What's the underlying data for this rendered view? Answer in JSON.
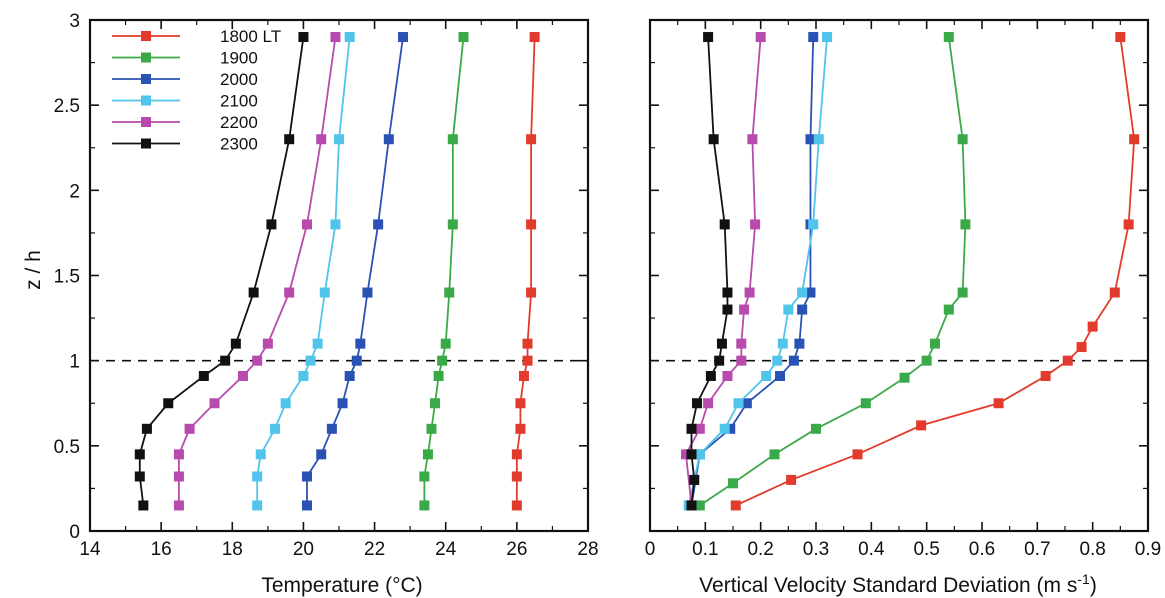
{
  "chart_data": [
    {
      "type": "line",
      "panel": "left",
      "xlabel": "Temperature (°C)",
      "ylabel": "z / h",
      "xlim": [
        14,
        28
      ],
      "ylim": [
        0,
        3
      ],
      "xticks": [
        "14",
        "16",
        "18",
        "20",
        "22",
        "24",
        "26",
        "28"
      ],
      "yticks": [
        "0",
        "0.5",
        "1",
        "1.5",
        "2",
        "2.5",
        "3"
      ],
      "grid": false,
      "reference_line": {
        "y": 1,
        "style": "dashed"
      },
      "legend_placement": "top-left",
      "series": [
        {
          "name": "1800 LT",
          "color": "#e23b2c",
          "points": [
            [
              26.0,
              0.15
            ],
            [
              26.0,
              0.32
            ],
            [
              26.0,
              0.45
            ],
            [
              26.1,
              0.6
            ],
            [
              26.1,
              0.75
            ],
            [
              26.2,
              0.91
            ],
            [
              26.3,
              1.0
            ],
            [
              26.3,
              1.1
            ],
            [
              26.4,
              1.4
            ],
            [
              26.4,
              1.8
            ],
            [
              26.4,
              2.3
            ],
            [
              26.5,
              2.9
            ]
          ]
        },
        {
          "name": "1900",
          "color": "#3aaa48",
          "points": [
            [
              23.4,
              0.15
            ],
            [
              23.4,
              0.32
            ],
            [
              23.5,
              0.45
            ],
            [
              23.6,
              0.6
            ],
            [
              23.7,
              0.75
            ],
            [
              23.8,
              0.91
            ],
            [
              23.9,
              1.0
            ],
            [
              24.0,
              1.1
            ],
            [
              24.1,
              1.4
            ],
            [
              24.2,
              1.8
            ],
            [
              24.2,
              2.3
            ],
            [
              24.5,
              2.9
            ]
          ]
        },
        {
          "name": "2000",
          "color": "#2a52b4",
          "points": [
            [
              20.1,
              0.15
            ],
            [
              20.1,
              0.32
            ],
            [
              20.5,
              0.45
            ],
            [
              20.8,
              0.6
            ],
            [
              21.1,
              0.75
            ],
            [
              21.3,
              0.91
            ],
            [
              21.5,
              1.0
            ],
            [
              21.6,
              1.1
            ],
            [
              21.8,
              1.4
            ],
            [
              22.1,
              1.8
            ],
            [
              22.4,
              2.3
            ],
            [
              22.8,
              2.9
            ]
          ]
        },
        {
          "name": "2100",
          "color": "#50c4ea",
          "points": [
            [
              18.7,
              0.15
            ],
            [
              18.7,
              0.32
            ],
            [
              18.8,
              0.45
            ],
            [
              19.2,
              0.6
            ],
            [
              19.5,
              0.75
            ],
            [
              20.0,
              0.91
            ],
            [
              20.2,
              1.0
            ],
            [
              20.4,
              1.1
            ],
            [
              20.6,
              1.4
            ],
            [
              20.9,
              1.8
            ],
            [
              21.0,
              2.3
            ],
            [
              21.3,
              2.9
            ]
          ]
        },
        {
          "name": "2200",
          "color": "#b84aad",
          "points": [
            [
              16.5,
              0.15
            ],
            [
              16.5,
              0.32
            ],
            [
              16.5,
              0.45
            ],
            [
              16.8,
              0.6
            ],
            [
              17.5,
              0.75
            ],
            [
              18.3,
              0.91
            ],
            [
              18.7,
              1.0
            ],
            [
              19.0,
              1.1
            ],
            [
              19.6,
              1.4
            ],
            [
              20.1,
              1.8
            ],
            [
              20.5,
              2.3
            ],
            [
              20.9,
              2.9
            ]
          ]
        },
        {
          "name": "2300",
          "color": "#111111",
          "points": [
            [
              15.5,
              0.15
            ],
            [
              15.4,
              0.32
            ],
            [
              15.4,
              0.45
            ],
            [
              15.6,
              0.6
            ],
            [
              16.2,
              0.75
            ],
            [
              17.2,
              0.91
            ],
            [
              17.8,
              1.0
            ],
            [
              18.1,
              1.1
            ],
            [
              18.6,
              1.4
            ],
            [
              19.1,
              1.8
            ],
            [
              19.6,
              2.3
            ],
            [
              20.0,
              2.9
            ]
          ]
        }
      ]
    },
    {
      "type": "line",
      "panel": "right",
      "xlabel": "Vertical Velocity Standard Deviation (m s",
      "xlabel_superscript": "-1",
      "xlabel_close": ")",
      "ylabel": "",
      "xlim": [
        0,
        0.9
      ],
      "ylim": [
        0,
        3
      ],
      "xticks": [
        "0",
        "0.1",
        "0.2",
        "0.3",
        "0.4",
        "0.5",
        "0.6",
        "0.7",
        "0.8",
        "0.9"
      ],
      "grid": false,
      "reference_line": {
        "y": 1,
        "style": "dashed"
      },
      "series": [
        {
          "name": "1800 LT",
          "color": "#e23b2c",
          "points": [
            [
              0.155,
              0.15
            ],
            [
              0.255,
              0.3
            ],
            [
              0.375,
              0.45
            ],
            [
              0.49,
              0.62
            ],
            [
              0.63,
              0.75
            ],
            [
              0.715,
              0.91
            ],
            [
              0.755,
              1.0
            ],
            [
              0.78,
              1.08
            ],
            [
              0.8,
              1.2
            ],
            [
              0.84,
              1.4
            ],
            [
              0.865,
              1.8
            ],
            [
              0.875,
              2.3
            ],
            [
              0.85,
              2.9
            ]
          ]
        },
        {
          "name": "1900",
          "color": "#3aaa48",
          "points": [
            [
              0.09,
              0.15
            ],
            [
              0.15,
              0.28
            ],
            [
              0.225,
              0.45
            ],
            [
              0.3,
              0.6
            ],
            [
              0.39,
              0.75
            ],
            [
              0.46,
              0.9
            ],
            [
              0.5,
              1.0
            ],
            [
              0.515,
              1.1
            ],
            [
              0.54,
              1.3
            ],
            [
              0.565,
              1.4
            ],
            [
              0.57,
              1.8
            ],
            [
              0.565,
              2.3
            ],
            [
              0.54,
              2.9
            ]
          ]
        },
        {
          "name": "2000",
          "color": "#2a52b4",
          "points": [
            [
              0.075,
              0.15
            ],
            [
              0.09,
              0.45
            ],
            [
              0.145,
              0.6
            ],
            [
              0.175,
              0.75
            ],
            [
              0.235,
              0.91
            ],
            [
              0.26,
              1.0
            ],
            [
              0.27,
              1.1
            ],
            [
              0.275,
              1.3
            ],
            [
              0.29,
              1.4
            ],
            [
              0.29,
              1.8
            ],
            [
              0.29,
              2.3
            ],
            [
              0.295,
              2.9
            ]
          ]
        },
        {
          "name": "2100",
          "color": "#50c4ea",
          "points": [
            [
              0.07,
              0.15
            ],
            [
              0.09,
              0.45
            ],
            [
              0.135,
              0.6
            ],
            [
              0.16,
              0.75
            ],
            [
              0.21,
              0.91
            ],
            [
              0.23,
              1.0
            ],
            [
              0.24,
              1.1
            ],
            [
              0.25,
              1.3
            ],
            [
              0.275,
              1.4
            ],
            [
              0.295,
              1.8
            ],
            [
              0.305,
              2.3
            ],
            [
              0.32,
              2.9
            ]
          ]
        },
        {
          "name": "2200",
          "color": "#b84aad",
          "points": [
            [
              0.075,
              0.15
            ],
            [
              0.065,
              0.45
            ],
            [
              0.09,
              0.6
            ],
            [
              0.105,
              0.75
            ],
            [
              0.14,
              0.91
            ],
            [
              0.165,
              1.0
            ],
            [
              0.165,
              1.1
            ],
            [
              0.17,
              1.3
            ],
            [
              0.18,
              1.4
            ],
            [
              0.19,
              1.8
            ],
            [
              0.185,
              2.3
            ],
            [
              0.2,
              2.9
            ]
          ]
        },
        {
          "name": "2300",
          "color": "#111111",
          "points": [
            [
              0.075,
              0.15
            ],
            [
              0.08,
              0.3
            ],
            [
              0.075,
              0.45
            ],
            [
              0.075,
              0.6
            ],
            [
              0.085,
              0.75
            ],
            [
              0.11,
              0.91
            ],
            [
              0.125,
              1.0
            ],
            [
              0.13,
              1.1
            ],
            [
              0.14,
              1.3
            ],
            [
              0.14,
              1.4
            ],
            [
              0.135,
              1.8
            ],
            [
              0.115,
              2.3
            ],
            [
              0.105,
              2.9
            ]
          ]
        }
      ]
    }
  ]
}
